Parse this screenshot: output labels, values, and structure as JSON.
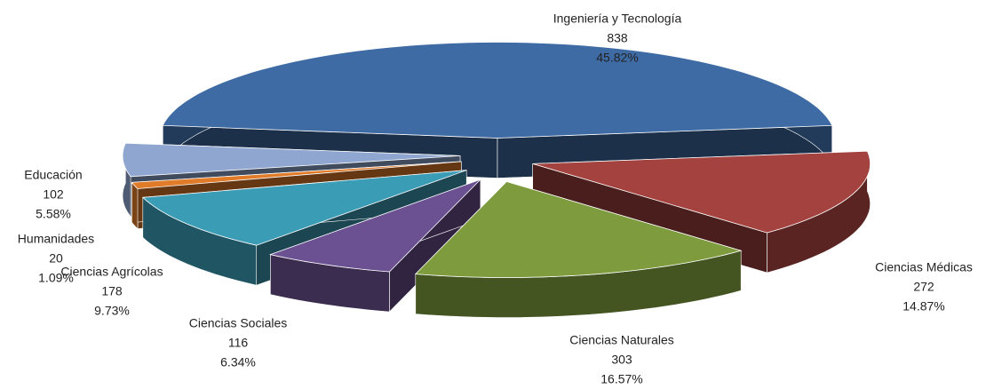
{
  "chart_data": {
    "type": "pie3d",
    "categories": [
      "Ingeniería y Tecnología",
      "Ciencias Médicas",
      "Ciencias Naturales",
      "Ciencias Sociales",
      "Ciencias Agrícolas",
      "Humanidades",
      "Educación"
    ],
    "values": [
      838,
      272,
      303,
      116,
      178,
      20,
      102
    ],
    "percent_labels": [
      "45.82%",
      "14.87%",
      "16.57%",
      "6.34%",
      "9.73%",
      "1.09%",
      "5.58%"
    ],
    "colors": [
      "#3f6ba4",
      "#a3423e",
      "#7e9b3d",
      "#6b5191",
      "#3b9cb6",
      "#e07b2a",
      "#8fa6d0"
    ]
  }
}
